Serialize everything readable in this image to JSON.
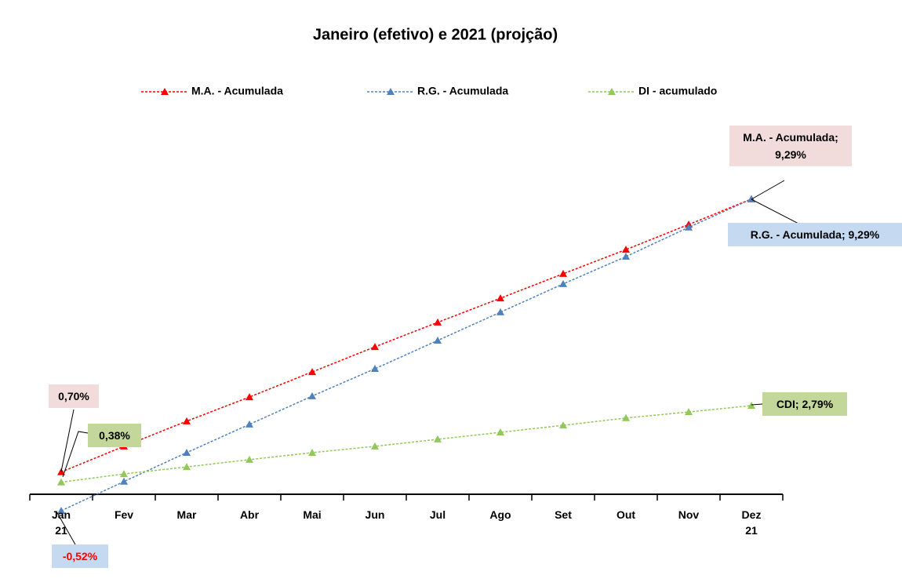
{
  "chart_data": {
    "type": "line",
    "title": "Janeiro (efetivo) e 2021 (projção)",
    "categories": [
      "Jan 21",
      "Fev",
      "Mar",
      "Abr",
      "Mai",
      "Jun",
      "Jul",
      "Ago",
      "Set",
      "Out",
      "Nov",
      "Dez 21"
    ],
    "ylim": [
      -1,
      10
    ],
    "series": [
      {
        "name": "M.A. - Acumulada",
        "color": "#ff0000",
        "label_fill": "#f2dcdb",
        "values": [
          0.7,
          1.51,
          2.3,
          3.06,
          3.85,
          4.64,
          5.41,
          6.17,
          6.94,
          7.7,
          8.49,
          9.29
        ],
        "value_labels": [
          "0,70%",
          null,
          null,
          null,
          null,
          null,
          null,
          null,
          null,
          null,
          null,
          "M.A. - Acumulada; 9,29%"
        ]
      },
      {
        "name": "R.G. - Acumulada",
        "color": "#4f81bd",
        "label_fill": "#c5d9f1",
        "values": [
          -0.52,
          0.4,
          1.31,
          2.2,
          3.09,
          3.95,
          4.84,
          5.73,
          6.62,
          7.48,
          8.4,
          9.29
        ],
        "value_labels": [
          "-0,52%",
          null,
          null,
          null,
          null,
          null,
          null,
          null,
          null,
          null,
          null,
          "R.G. - Acumulada; 9,29%"
        ]
      },
      {
        "name": "DI - acumulado",
        "color": "#92c85a",
        "label_fill": "#c4d79b",
        "values": [
          0.38,
          0.64,
          0.86,
          1.09,
          1.31,
          1.51,
          1.73,
          1.95,
          2.17,
          2.4,
          2.59,
          2.79
        ],
        "value_labels": [
          "0,38%",
          null,
          null,
          null,
          null,
          null,
          null,
          null,
          null,
          null,
          null,
          "CDI; 2,79%"
        ]
      }
    ]
  }
}
